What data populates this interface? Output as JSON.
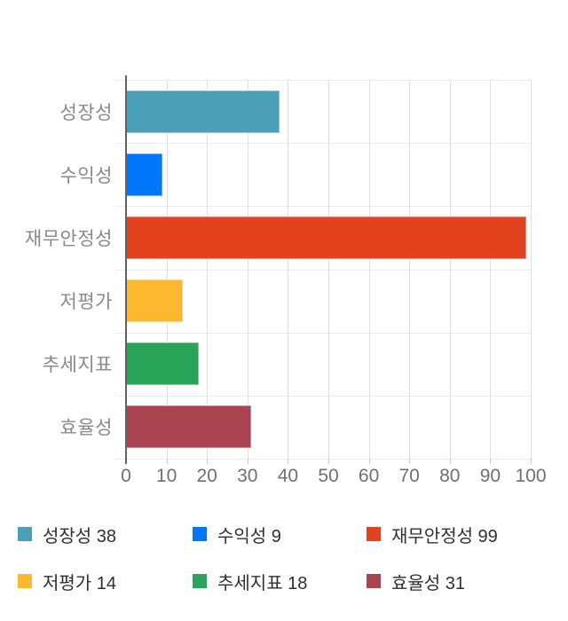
{
  "chart_data": {
    "type": "bar",
    "orientation": "horizontal",
    "title": "",
    "categories": [
      "성장성",
      "수익성",
      "재무안정성",
      "저평가",
      "추세지표",
      "효율성"
    ],
    "values": [
      38,
      9,
      99,
      14,
      18,
      31
    ],
    "colors": [
      "#4ba0b7",
      "#0077f8",
      "#e2431e",
      "#fcb92f",
      "#2aa458",
      "#a94350"
    ],
    "xlim": [
      0,
      100
    ],
    "x_ticks": [
      0,
      10,
      20,
      30,
      40,
      50,
      60,
      70,
      80,
      90,
      100
    ],
    "grid": true,
    "legend": {
      "position": "bottom",
      "items": [
        {
          "label": "성장성 38",
          "color": "#4ba0b7"
        },
        {
          "label": "수익성 9",
          "color": "#0077f8"
        },
        {
          "label": "재무안정성 99",
          "color": "#e2431e"
        },
        {
          "label": "저평가 14",
          "color": "#fcb92f"
        },
        {
          "label": "추세지표 18",
          "color": "#2aa458"
        },
        {
          "label": "효율성 31",
          "color": "#a94350"
        }
      ]
    }
  },
  "style_colors": {
    "category_label": "#8a8a8a",
    "tick_label": "#6f6f6f",
    "legend_text": "#2f2f2f",
    "gridline_v": "#e0e0e0",
    "gridline_h": "#ebebeb",
    "axis_line": "#616161",
    "tick_mark": "#cccccc",
    "background": "#ffffff"
  }
}
